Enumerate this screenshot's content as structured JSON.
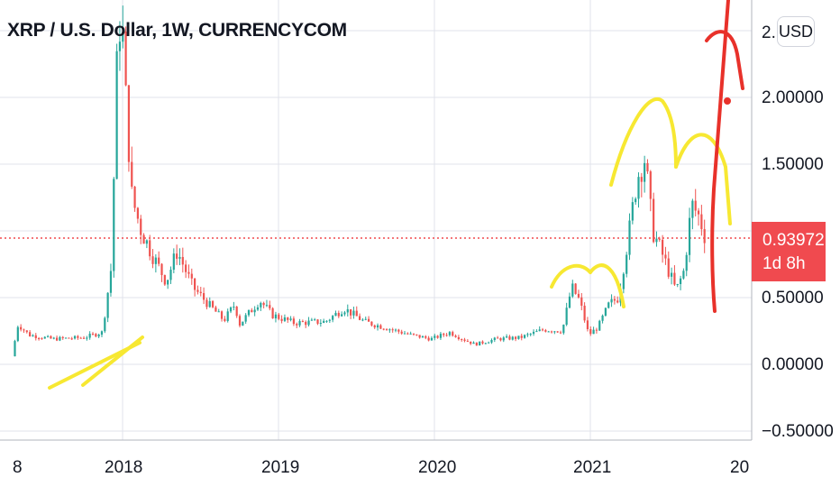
{
  "header": {
    "title": "XRP / U.S. Dollar, 1W, CURRENCYCOM",
    "currency_button": "USD"
  },
  "price_tag": {
    "price": "0.93972",
    "countdown": "1d 8h",
    "color": "#f04a4f"
  },
  "colors": {
    "up": "#26a69a",
    "down": "#ef5350",
    "grid": "#e0e3eb",
    "yellow_annotation": "#f7e832",
    "red_annotation": "#e8312a"
  },
  "chart_data": {
    "type": "candlestick",
    "title": "XRP / U.S. Dollar, 1W, CURRENCYCOM",
    "xlabel": "",
    "ylabel": "",
    "ylim": [
      -0.62,
      2.58
    ],
    "y_ticks": [
      "2.",
      "2.00000",
      "1.50000",
      "0.93972",
      "0.50000",
      "0.00000",
      "−0.50000"
    ],
    "x_ticks": [
      "8",
      "2018",
      "2019",
      "2020",
      "2021",
      "20"
    ],
    "current_price": 0.93972,
    "grid": true,
    "waypoints": [
      [
        2017.29,
        0.06
      ],
      [
        2017.33,
        0.3
      ],
      [
        2017.4,
        0.22
      ],
      [
        2017.55,
        0.19
      ],
      [
        2017.75,
        0.2
      ],
      [
        2017.87,
        0.24
      ],
      [
        2017.93,
        0.75
      ],
      [
        2017.96,
        2.15
      ],
      [
        2017.99,
        2.7
      ],
      [
        2018.02,
        2.0
      ],
      [
        2018.06,
        1.25
      ],
      [
        2018.12,
        1.0
      ],
      [
        2018.2,
        0.8
      ],
      [
        2018.28,
        0.62
      ],
      [
        2018.35,
        0.85
      ],
      [
        2018.45,
        0.58
      ],
      [
        2018.55,
        0.45
      ],
      [
        2018.65,
        0.33
      ],
      [
        2018.72,
        0.45
      ],
      [
        2018.75,
        0.3
      ],
      [
        2018.88,
        0.48
      ],
      [
        2018.96,
        0.37
      ],
      [
        2019.1,
        0.31
      ],
      [
        2019.3,
        0.32
      ],
      [
        2019.42,
        0.42
      ],
      [
        2019.55,
        0.32
      ],
      [
        2019.7,
        0.27
      ],
      [
        2019.85,
        0.22
      ],
      [
        2019.98,
        0.19
      ],
      [
        2020.1,
        0.24
      ],
      [
        2020.18,
        0.19
      ],
      [
        2020.26,
        0.15
      ],
      [
        2020.4,
        0.19
      ],
      [
        2020.55,
        0.2
      ],
      [
        2020.7,
        0.26
      ],
      [
        2020.82,
        0.25
      ],
      [
        2020.88,
        0.58
      ],
      [
        2020.93,
        0.48
      ],
      [
        2020.99,
        0.22
      ],
      [
        2021.05,
        0.28
      ],
      [
        2021.12,
        0.45
      ],
      [
        2021.18,
        0.5
      ],
      [
        2021.25,
        1.0
      ],
      [
        2021.3,
        1.4
      ],
      [
        2021.35,
        1.55
      ],
      [
        2021.4,
        1.0
      ],
      [
        2021.47,
        0.8
      ],
      [
        2021.55,
        0.55
      ],
      [
        2021.6,
        0.7
      ],
      [
        2021.65,
        1.2
      ],
      [
        2021.7,
        1.1
      ],
      [
        2021.74,
        0.94
      ]
    ]
  }
}
